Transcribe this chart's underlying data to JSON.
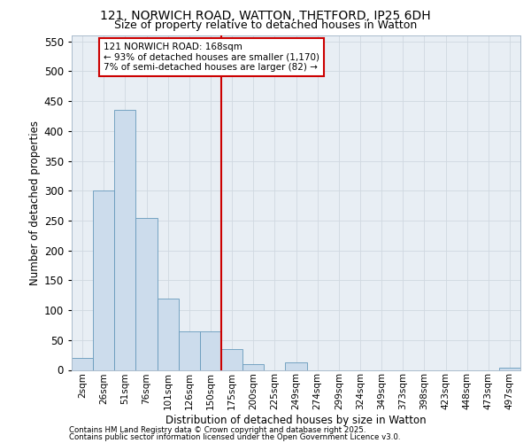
{
  "title_line1": "121, NORWICH ROAD, WATTON, THETFORD, IP25 6DH",
  "title_line2": "Size of property relative to detached houses in Watton",
  "xlabel": "Distribution of detached houses by size in Watton",
  "ylabel": "Number of detached properties",
  "bar_labels": [
    "2sqm",
    "26sqm",
    "51sqm",
    "76sqm",
    "101sqm",
    "126sqm",
    "150sqm",
    "175sqm",
    "200sqm",
    "225sqm",
    "249sqm",
    "274sqm",
    "299sqm",
    "324sqm",
    "349sqm",
    "373sqm",
    "398sqm",
    "423sqm",
    "448sqm",
    "473sqm",
    "497sqm"
  ],
  "bar_values": [
    20,
    300,
    435,
    255,
    120,
    65,
    65,
    35,
    10,
    0,
    13,
    0,
    0,
    0,
    0,
    0,
    0,
    0,
    0,
    0,
    3
  ],
  "bar_color": "#ccdcec",
  "bar_edgecolor": "#6699bb",
  "grid_color": "#d0d8e0",
  "background_color": "#e8eef4",
  "vline_x_index": 7,
  "vline_color": "#cc0000",
  "ylim": [
    0,
    560
  ],
  "yticks": [
    0,
    50,
    100,
    150,
    200,
    250,
    300,
    350,
    400,
    450,
    500,
    550
  ],
  "annotation_text": "121 NORWICH ROAD: 168sqm\n← 93% of detached houses are smaller (1,170)\n7% of semi-detached houses are larger (82) →",
  "annotation_box_facecolor": "#ffffff",
  "annotation_box_edgecolor": "#cc0000",
  "footer_line1": "Contains HM Land Registry data © Crown copyright and database right 2025.",
  "footer_line2": "Contains public sector information licensed under the Open Government Licence v3.0."
}
